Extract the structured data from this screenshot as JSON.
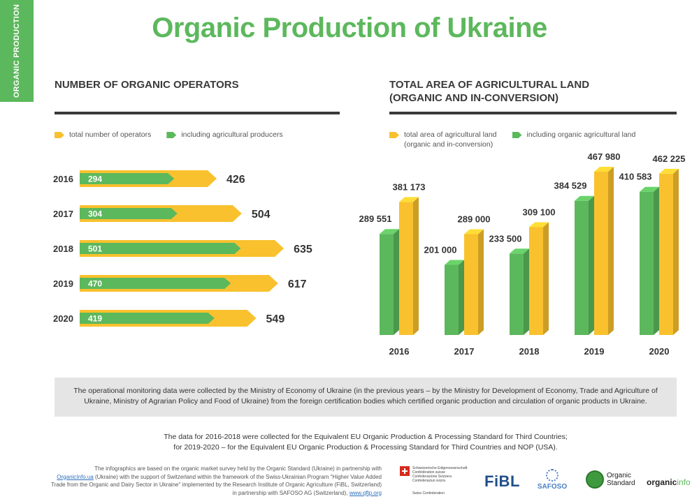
{
  "side_tab": {
    "label": "ORGANIC PRODUCTION"
  },
  "title": "Organic Production of Ukraine",
  "left_section": {
    "title": "NUMBER OF ORGANIC OPERATORS",
    "legend": [
      "total number of operators",
      "including agricultural producers"
    ]
  },
  "right_section": {
    "title_line1": "TOTAL AREA OF AGRICULTURAL LAND",
    "title_line2": "(ORGANIC AND IN-CONVERSION)",
    "legend_total_line1": "total area of agricultural land",
    "legend_total_line2": "(organic and in-conversion)",
    "legend_organic": "including organic agricultural land"
  },
  "colors": {
    "green": "#5cb85c",
    "yellow": "#f9c12e",
    "dark": "#3a3a3a"
  },
  "chart_data": [
    {
      "type": "bar",
      "orientation": "horizontal",
      "title": "NUMBER OF ORGANIC OPERATORS",
      "categories": [
        "2016",
        "2017",
        "2018",
        "2019",
        "2020"
      ],
      "series": [
        {
          "name": "total number of operators",
          "values": [
            426,
            504,
            635,
            617,
            549
          ],
          "labels": [
            "426",
            "504",
            "635",
            "617",
            "549"
          ]
        },
        {
          "name": "including agricultural producers",
          "values": [
            294,
            304,
            501,
            470,
            419
          ],
          "labels": [
            "294",
            "304",
            "501",
            "470",
            "419"
          ]
        }
      ],
      "legend": "top-left",
      "grid": false
    },
    {
      "type": "bar",
      "orientation": "vertical",
      "title": "TOTAL AREA OF AGRICULTURAL LAND (ORGANIC AND IN-CONVERSION)",
      "categories": [
        "2016",
        "2017",
        "2018",
        "2019",
        "2020"
      ],
      "series": [
        {
          "name": "including organic agricultural land",
          "values": [
            289551,
            201000,
            233500,
            384529,
            410583
          ],
          "labels": [
            "289 551",
            "201 000",
            "233 500",
            "384 529",
            "410 583"
          ]
        },
        {
          "name": "total area of agricultural land (organic and in-conversion)",
          "values": [
            381173,
            289000,
            309100,
            467980,
            462225
          ],
          "labels": [
            "381 173",
            "289 000",
            "309 100",
            "467 980",
            "462 225"
          ]
        }
      ],
      "legend": "top-left",
      "grid": false
    }
  ],
  "note_box": "The operational monitoring data were collected by the Ministry of Economy of Ukraine (in the previous years – by the Ministry for Development of Economy, Trade and Agriculture of Ukraine, Ministry of Agrarian Policy and Food of Ukraine) from the foreign certification bodies which certified organic production and circulation of organic products in Ukraine.",
  "note_line1": "The data for 2016-2018 were collected for the Equivalent EU Organic Production & Processing Standard for Third Countries;",
  "note_line2": "for 2019-2020 – for the Equivalent EU Organic Production & Processing Standard for Third Countries and NOP (USA).",
  "credits": {
    "line1": "The infographics are based on the organic market survey held by the Organic Standard (Ukraine) in partnership with",
    "link1": "OrganicInfo.ua",
    "line2": " (Ukraine) with the support of Switzerland within the framework of the Swiss-Ukrainian Program \"Higher Value Added",
    "line3": "Trade from the Organic and Dairy Sector in Ukraine\" implemented by the Research Institute of Organic Agriculture (FiBL, Switzerland)",
    "line4": "in partnership with SAFOSO AG (Switzerland), ",
    "link2": "www.qftp.org"
  },
  "logos": {
    "swiss_lines": [
      "Schweizerische Eidgenossenschaft",
      "Confédération suisse",
      "Confederazione Svizzera",
      "Confederaziun svizra"
    ],
    "swiss_bottom": "Swiss Confederation",
    "fibl": "FiBL",
    "safoso": "SAFOSO",
    "organic_standard_line1": "Organic",
    "organic_standard_line2": "Standard",
    "organicinfo_a": "organic",
    "organicinfo_b": "info"
  }
}
